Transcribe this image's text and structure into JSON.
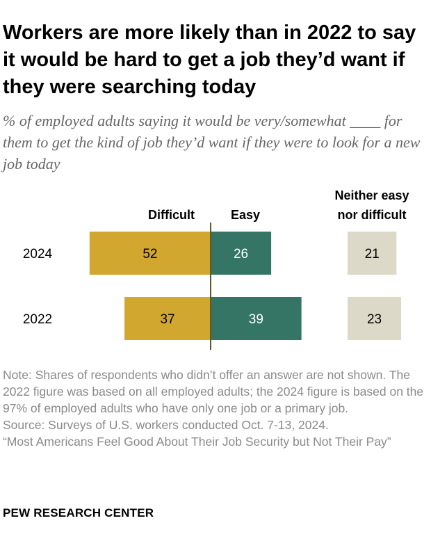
{
  "title": "Workers are more likely than in 2022 to say it would be hard to get a job they’d want if they were searching today",
  "subtitle": "% of employed adults saying it would be very/somewhat ____ for them to get the kind of job they’d want if they were to look for a new job today",
  "chart_data": {
    "type": "bar",
    "orientation": "horizontal-diverging",
    "categories": [
      "2024",
      "2022"
    ],
    "series": [
      {
        "name": "Difficult",
        "values": [
          52,
          37
        ],
        "color": "#D1A730"
      },
      {
        "name": "Easy",
        "values": [
          26,
          39
        ],
        "color": "#357565"
      },
      {
        "name": "Neither easy nor difficult",
        "values": [
          21,
          23
        ],
        "color": "#DCD9C9"
      }
    ],
    "headers": {
      "difficult": "Difficult",
      "easy": "Easy",
      "neither_line1": "Neither easy",
      "neither_line2": "nor difficult"
    },
    "axis_color": "#5E5A24"
  },
  "notes": {
    "note": "Note: Shares of respondents who didn’t offer an answer are not shown. The 2022 figure was based on all employed adults; the 2024 figure is based on the 97% of employed adults who have only one job or a primary job.",
    "source": "Source: Surveys of U.S. workers conducted Oct. 7-13, 2024.",
    "report": "“Most Americans Feel Good About Their Job Security but Not Their Pay”"
  },
  "brand": "PEW RESEARCH CENTER"
}
